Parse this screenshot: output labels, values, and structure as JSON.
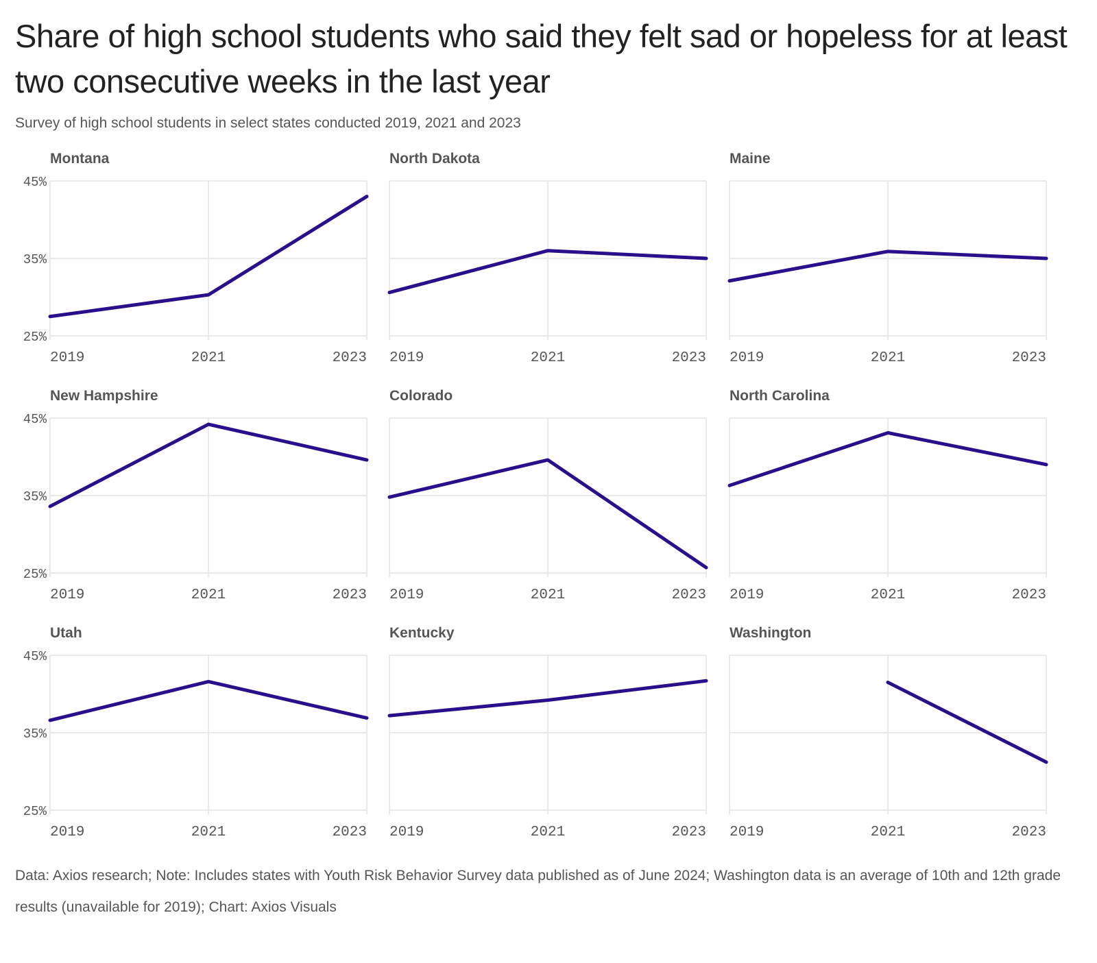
{
  "header": {
    "title": "Share of high school students who said they felt sad or hopeless for at least two consecutive weeks in the last year",
    "subtitle": "Survey of high school students in select states conducted 2019, 2021 and 2023"
  },
  "footer": {
    "note": "Data: Axios research; Note: Includes states with Youth Risk Behavior Survey data published as of June 2024; Washington data is an average of 10th and 12th grade results (unavailable for 2019); Chart: Axios Visuals"
  },
  "colors": {
    "line": "#2a0f8c",
    "grid": "#e3e3e3",
    "panel_title": "#555555",
    "tick": "#555555"
  },
  "chart_data": {
    "type": "line",
    "layout": "small-multiples",
    "x": [
      "2019",
      "2021",
      "2023"
    ],
    "ylim": [
      25,
      45
    ],
    "yticks": [
      "25%",
      "35%",
      "45%"
    ],
    "grid": true,
    "panels": [
      {
        "state": "Montana",
        "values": [
          27.5,
          30.3,
          43.0
        ]
      },
      {
        "state": "North Dakota",
        "values": [
          30.6,
          36.0,
          35.0
        ]
      },
      {
        "state": "Maine",
        "values": [
          32.1,
          35.9,
          35.0
        ]
      },
      {
        "state": "New Hampshire",
        "values": [
          33.6,
          44.2,
          39.6
        ]
      },
      {
        "state": "Colorado",
        "values": [
          34.8,
          39.6,
          25.7
        ]
      },
      {
        "state": "North Carolina",
        "values": [
          36.3,
          43.1,
          39.0
        ]
      },
      {
        "state": "Utah",
        "values": [
          36.6,
          41.6,
          36.9
        ]
      },
      {
        "state": "Kentucky",
        "values": [
          37.2,
          39.2,
          41.7
        ]
      },
      {
        "state": "Washington",
        "values": [
          null,
          41.5,
          31.2
        ]
      }
    ]
  }
}
